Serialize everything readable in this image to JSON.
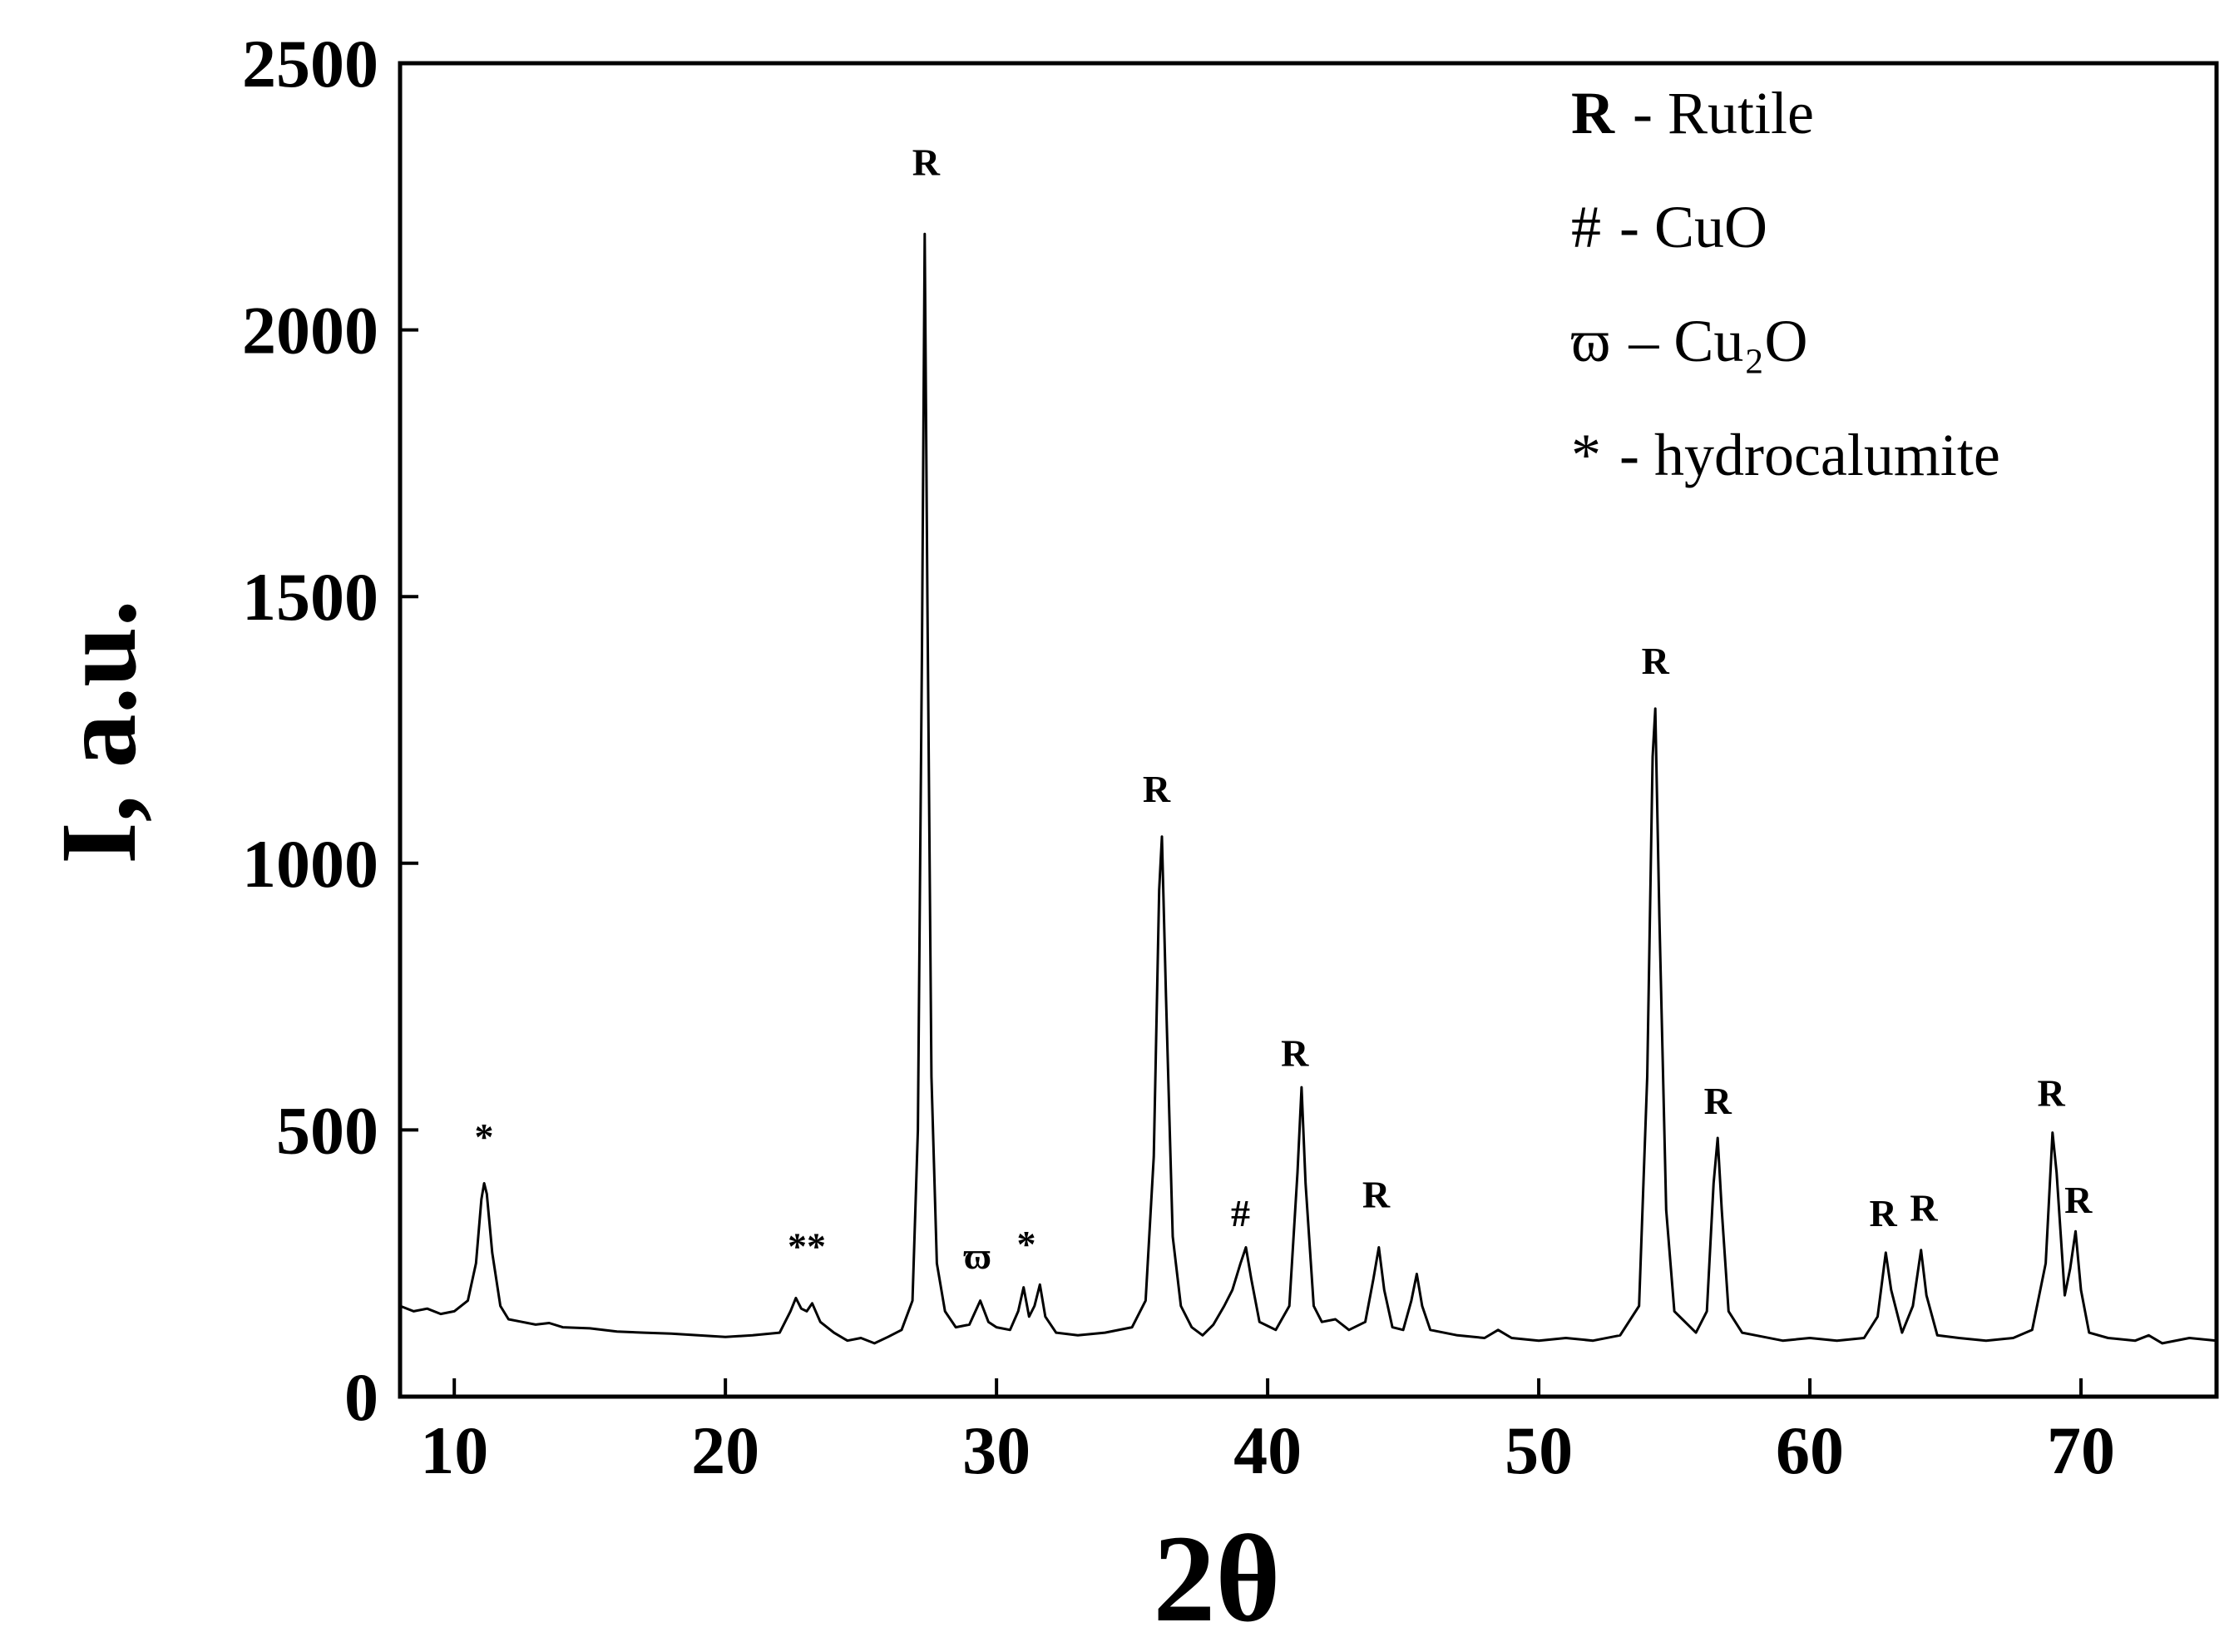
{
  "chart_data": {
    "type": "line",
    "x_label": "2θ",
    "y_label": "I, a.u.",
    "xlim": [
      8,
      75
    ],
    "ylim": [
      0,
      2500
    ],
    "xticks": [
      10,
      20,
      30,
      40,
      50,
      60,
      70
    ],
    "yticks": [
      0,
      500,
      1000,
      1500,
      2000,
      2500
    ],
    "grid": false,
    "series": [
      {
        "color": "#000000",
        "x": [
          8,
          8.5,
          9,
          9.5,
          10,
          10.5,
          10.8,
          11.0,
          11.1,
          11.2,
          11.4,
          11.7,
          12,
          12.5,
          13,
          13.5,
          14,
          15,
          16,
          17,
          18,
          19,
          20,
          21,
          22,
          22.4,
          22.6,
          22.8,
          23.0,
          23.2,
          23.5,
          24,
          24.5,
          25,
          25.5,
          26,
          26.5,
          26.9,
          27.1,
          27.25,
          27.35,
          27.45,
          27.6,
          27.8,
          28.1,
          28.5,
          29,
          29.4,
          29.7,
          30,
          30.5,
          30.8,
          31.0,
          31.2,
          31.4,
          31.6,
          31.8,
          32.2,
          33,
          34,
          35,
          35.5,
          35.8,
          36.0,
          36.1,
          36.25,
          36.5,
          36.8,
          37.2,
          37.6,
          38,
          38.4,
          38.7,
          39.0,
          39.2,
          39.4,
          39.7,
          40.3,
          40.8,
          41.1,
          41.25,
          41.4,
          41.7,
          42,
          42.5,
          43,
          43.6,
          43.9,
          44.1,
          44.3,
          44.6,
          45,
          45.3,
          45.5,
          45.7,
          46,
          47,
          48,
          48.5,
          49,
          50,
          51,
          52,
          53,
          53.7,
          54.0,
          54.2,
          54.3,
          54.45,
          54.7,
          55,
          55.3,
          55.8,
          56.2,
          56.45,
          56.6,
          56.75,
          57.0,
          57.5,
          58,
          59,
          60,
          61,
          62,
          62.5,
          62.8,
          63.0,
          63.4,
          63.8,
          64.1,
          64.3,
          64.7,
          65.5,
          66.5,
          67.5,
          68.2,
          68.7,
          68.95,
          69.1,
          69.4,
          69.6,
          69.8,
          70.0,
          70.3,
          71,
          72,
          72.5,
          73,
          74,
          75
        ],
        "values": [
          170,
          160,
          165,
          155,
          160,
          180,
          250,
          370,
          400,
          380,
          270,
          170,
          145,
          140,
          135,
          138,
          130,
          128,
          122,
          120,
          118,
          115,
          112,
          115,
          120,
          160,
          185,
          165,
          160,
          175,
          140,
          120,
          105,
          110,
          100,
          112,
          125,
          180,
          500,
          1400,
          2180,
          1500,
          600,
          250,
          160,
          130,
          135,
          180,
          140,
          130,
          125,
          160,
          205,
          150,
          170,
          210,
          150,
          120,
          115,
          120,
          130,
          180,
          450,
          950,
          1050,
          750,
          300,
          170,
          130,
          115,
          135,
          170,
          200,
          250,
          280,
          220,
          140,
          125,
          170,
          420,
          580,
          400,
          170,
          140,
          145,
          125,
          140,
          220,
          280,
          200,
          130,
          125,
          180,
          230,
          170,
          125,
          115,
          110,
          125,
          110,
          105,
          110,
          105,
          115,
          170,
          600,
          1200,
          1290,
          900,
          350,
          160,
          145,
          120,
          160,
          400,
          485,
          350,
          160,
          120,
          115,
          105,
          110,
          105,
          110,
          150,
          270,
          200,
          120,
          170,
          275,
          190,
          115,
          110,
          105,
          110,
          125,
          250,
          495,
          420,
          190,
          240,
          310,
          200,
          120,
          110,
          105,
          115,
          100,
          110,
          105
        ]
      }
    ],
    "annotations": [
      {
        "text": "*",
        "x": 11.1,
        "y": 463
      },
      {
        "text": "**",
        "x": 23.0,
        "y": 258
      },
      {
        "text": "R",
        "x": 27.4,
        "y": 2290
      },
      {
        "text": "ϖ",
        "x": 29.3,
        "y": 240
      },
      {
        "text": "*",
        "x": 31.1,
        "y": 262
      },
      {
        "text": "R",
        "x": 35.9,
        "y": 1115
      },
      {
        "text": "#",
        "x": 39.0,
        "y": 320
      },
      {
        "text": "R",
        "x": 41.0,
        "y": 620
      },
      {
        "text": "R",
        "x": 44.0,
        "y": 355
      },
      {
        "text": "R",
        "x": 54.3,
        "y": 1355
      },
      {
        "text": "R",
        "x": 56.6,
        "y": 530
      },
      {
        "text": "R",
        "x": 62.7,
        "y": 320
      },
      {
        "text": "R",
        "x": 64.2,
        "y": 330
      },
      {
        "text": "R",
        "x": 68.9,
        "y": 545
      },
      {
        "text": "R",
        "x": 69.9,
        "y": 345
      }
    ],
    "legend_notes": [
      {
        "symbol": "R",
        "text": "- Rutile"
      },
      {
        "symbol": "#",
        "text": "- CuO"
      },
      {
        "symbol": "ϖ",
        "text": "– Cu₂O"
      },
      {
        "symbol": "*",
        "text": "- hydrocalumite"
      }
    ]
  }
}
